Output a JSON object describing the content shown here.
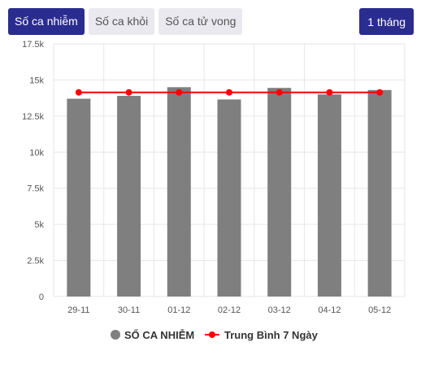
{
  "tabs": [
    {
      "label": "Số ca nhiễm",
      "active": true
    },
    {
      "label": "Số ca khỏi",
      "active": false
    },
    {
      "label": "Số ca tử vong",
      "active": false
    }
  ],
  "range_button": "1 tháng",
  "colors": {
    "accent": "#2b2c8f",
    "bar": "#7f7f7f",
    "line": "#ff0000",
    "grid": "#e6e6e6"
  },
  "chart_data": {
    "type": "bar",
    "categories": [
      "29-11",
      "30-11",
      "01-12",
      "02-12",
      "03-12",
      "04-12",
      "05-12"
    ],
    "series": [
      {
        "name": "SỐ CA NHIỄM",
        "type": "bar",
        "values": [
          13700,
          13900,
          14500,
          13650,
          14450,
          14000,
          14300
        ]
      },
      {
        "name": "Trung Bình 7 Ngày",
        "type": "line",
        "values": [
          14140,
          14140,
          14140,
          14140,
          14140,
          14140,
          14140
        ]
      }
    ],
    "ylim": [
      0,
      17500
    ],
    "yticks": [
      0,
      2500,
      5000,
      7500,
      10000,
      12500,
      15000,
      17500
    ],
    "ytick_labels": [
      "0",
      "2.5k",
      "5k",
      "7.5k",
      "10k",
      "12.5k",
      "15k",
      "17.5k"
    ],
    "legend": "bottom",
    "grid": true
  }
}
